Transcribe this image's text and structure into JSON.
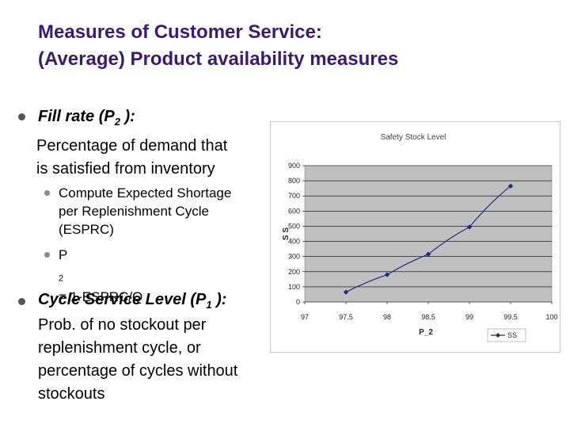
{
  "slide": {
    "title_line1": "Measures of Customer Service:",
    "title_line2": "(Average) Product availability measures",
    "fill_rate": {
      "heading_pre": "Fill rate (P",
      "heading_sub": "2",
      "heading_post": " ):",
      "desc_line1": "Percentage of demand that",
      "desc_line2": "is satisfied from inventory",
      "sub1_line1": "Compute Expected Shortage",
      "sub1_line2": "per Replenishment Cycle",
      "sub1_line3": "(ESPRC)",
      "sub2_pre": "P",
      "sub2_sub": "2",
      "sub2_post": " = 1-ESPRC/Q"
    },
    "csl": {
      "heading_pre": "Cycle Service Level (P",
      "heading_sub": "1",
      "heading_post": " ):",
      "desc_line1": "Prob. of no stockout per",
      "desc_line2": "replenishment cycle, or",
      "desc_line3": "percentage of cycles without",
      "desc_line4": "stockouts"
    }
  },
  "colors": {
    "title": "#3d1a6e",
    "plot_area": "#c0c0c0",
    "series": "#1f2a7a"
  },
  "chart_data": {
    "type": "line",
    "title": "Safety Stock Level",
    "xlabel": "P_2",
    "ylabel": "S S",
    "xlim": [
      97,
      100
    ],
    "ylim": [
      0,
      900
    ],
    "x_ticks": [
      97,
      97.5,
      98,
      98.5,
      99,
      99.5,
      100
    ],
    "y_ticks": [
      0,
      100,
      200,
      300,
      400,
      500,
      600,
      700,
      800,
      900
    ],
    "grid": true,
    "legend": "bottom-right",
    "series": [
      {
        "name": "SS",
        "x": [
          97.5,
          98,
          98.5,
          99,
          99.5
        ],
        "values": [
          65,
          180,
          315,
          495,
          765
        ]
      }
    ]
  }
}
